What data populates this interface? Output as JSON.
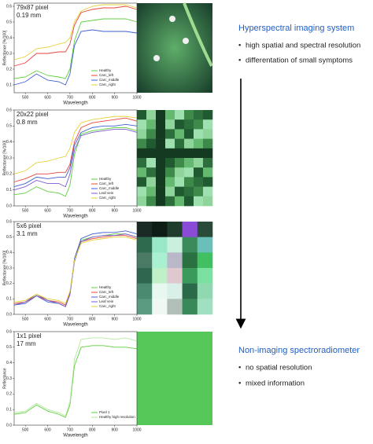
{
  "chart_data": [
    {
      "type": "line",
      "annotations": [
        "79x87 pixel",
        "0.19 mm"
      ],
      "xlabel": "Wavelength",
      "ylabel": "Reflectance [%/100]",
      "x": [
        450,
        500,
        550,
        600,
        650,
        680,
        700,
        720,
        750,
        800,
        850,
        900,
        950,
        1000
      ],
      "xlim": [
        450,
        1000
      ],
      "xticks": [
        500,
        600,
        700,
        800,
        900,
        1000
      ],
      "ylim": [
        0.05,
        0.62
      ],
      "yticks": [
        0.1,
        0.2,
        0.3,
        0.4,
        0.5,
        0.6
      ],
      "legend": "lower right",
      "series": [
        {
          "name": "Healthy",
          "color": "#5fd040",
          "values": [
            0.14,
            0.15,
            0.19,
            0.16,
            0.15,
            0.14,
            0.2,
            0.38,
            0.5,
            0.51,
            0.52,
            0.52,
            0.52,
            0.5
          ]
        },
        {
          "name": "Carc_left",
          "color": "#e8443a",
          "values": [
            0.22,
            0.24,
            0.3,
            0.3,
            0.31,
            0.31,
            0.36,
            0.48,
            0.56,
            0.58,
            0.59,
            0.59,
            0.6,
            0.58
          ]
        },
        {
          "name": "Carc_middle",
          "color": "#3f5fd0",
          "values": [
            0.1,
            0.12,
            0.17,
            0.13,
            0.12,
            0.1,
            0.17,
            0.35,
            0.44,
            0.45,
            0.44,
            0.44,
            0.44,
            0.43
          ]
        },
        {
          "name": "Carc_right",
          "color": "#e6d23a",
          "values": [
            0.26,
            0.28,
            0.33,
            0.34,
            0.36,
            0.37,
            0.4,
            0.5,
            0.57,
            0.6,
            0.61,
            0.61,
            0.61,
            0.59
          ]
        }
      ]
    },
    {
      "type": "line",
      "annotations": [
        "20x22 pixel",
        "0.8 mm"
      ],
      "xlabel": "Wavelength",
      "ylabel": "Reflectance [%/100]",
      "x": [
        450,
        500,
        550,
        600,
        650,
        680,
        700,
        720,
        750,
        800,
        850,
        900,
        950,
        1000
      ],
      "xlim": [
        450,
        1000
      ],
      "xticks": [
        500,
        600,
        700,
        800,
        900,
        1000
      ],
      "ylim": [
        0,
        0.6
      ],
      "yticks": [
        {
          "value": 0,
          "label": "0.0"
        },
        0.1,
        0.2,
        0.3,
        0.4,
        0.5,
        0.6
      ],
      "legend": "lower right",
      "series": [
        {
          "name": "Healthy",
          "color": "#5fd040",
          "values": [
            0.07,
            0.08,
            0.12,
            0.09,
            0.08,
            0.06,
            0.13,
            0.32,
            0.45,
            0.47,
            0.48,
            0.49,
            0.49,
            0.47
          ]
        },
        {
          "name": "Carc_left",
          "color": "#e8443a",
          "values": [
            0.15,
            0.17,
            0.2,
            0.2,
            0.21,
            0.21,
            0.26,
            0.4,
            0.49,
            0.52,
            0.53,
            0.54,
            0.55,
            0.53
          ]
        },
        {
          "name": "Carc_middle",
          "color": "#3f5fd0",
          "values": [
            0.12,
            0.14,
            0.18,
            0.17,
            0.18,
            0.18,
            0.24,
            0.38,
            0.46,
            0.49,
            0.5,
            0.5,
            0.51,
            0.5
          ]
        },
        {
          "name": "Leaf vein",
          "color": "#7a5ad0",
          "values": [
            0.1,
            0.12,
            0.16,
            0.14,
            0.14,
            0.12,
            0.2,
            0.35,
            0.44,
            0.46,
            0.47,
            0.48,
            0.48,
            0.46
          ]
        },
        {
          "name": "Carc_right",
          "color": "#e6d23a",
          "values": [
            0.2,
            0.22,
            0.27,
            0.28,
            0.3,
            0.31,
            0.36,
            0.46,
            0.52,
            0.54,
            0.55,
            0.56,
            0.56,
            0.55
          ]
        }
      ]
    },
    {
      "type": "line",
      "annotations": [
        "5x6 pixel",
        "3.1 mm"
      ],
      "xlabel": "Wavelength",
      "ylabel": "Reflectance [%/100]",
      "x": [
        450,
        500,
        550,
        600,
        650,
        680,
        700,
        720,
        750,
        800,
        850,
        900,
        950,
        1000
      ],
      "xlim": [
        450,
        1000
      ],
      "xticks": [
        500,
        600,
        700,
        800,
        900,
        1000
      ],
      "ylim": [
        0,
        0.6
      ],
      "yticks": [
        {
          "value": 0,
          "label": "0.0"
        },
        0.1,
        0.2,
        0.3,
        0.4,
        0.5,
        0.6
      ],
      "legend": "lower right",
      "series": [
        {
          "name": "Healthy",
          "color": "#5fd040",
          "values": [
            0.07,
            0.08,
            0.13,
            0.09,
            0.07,
            0.05,
            0.13,
            0.35,
            0.48,
            0.5,
            0.51,
            0.52,
            0.52,
            0.5
          ]
        },
        {
          "name": "Carc_left",
          "color": "#e8443a",
          "values": [
            0.07,
            0.08,
            0.12,
            0.09,
            0.08,
            0.06,
            0.14,
            0.35,
            0.47,
            0.49,
            0.5,
            0.51,
            0.51,
            0.49
          ]
        },
        {
          "name": "Carc_middle",
          "color": "#3f5fd0",
          "values": [
            0.06,
            0.07,
            0.12,
            0.08,
            0.07,
            0.05,
            0.13,
            0.36,
            0.49,
            0.52,
            0.53,
            0.53,
            0.54,
            0.52
          ]
        },
        {
          "name": "Leaf vein",
          "color": "#7a5ad0",
          "values": [
            0.06,
            0.08,
            0.13,
            0.09,
            0.07,
            0.05,
            0.13,
            0.34,
            0.47,
            0.5,
            0.51,
            0.51,
            0.52,
            0.5
          ]
        },
        {
          "name": "Carc_right",
          "color": "#e6d23a",
          "values": [
            0.08,
            0.09,
            0.13,
            0.1,
            0.09,
            0.07,
            0.15,
            0.35,
            0.46,
            0.48,
            0.49,
            0.5,
            0.5,
            0.48
          ]
        }
      ]
    },
    {
      "type": "line",
      "annotations": [
        "1x1 pixel",
        "17 mm"
      ],
      "xlabel": "Wavelength",
      "ylabel": "Reflectance",
      "x": [
        450,
        500,
        550,
        600,
        650,
        680,
        700,
        720,
        750,
        800,
        850,
        900,
        950,
        1000
      ],
      "xlim": [
        450,
        1000
      ],
      "xticks": [
        500,
        600,
        700,
        800,
        900,
        1000
      ],
      "ylim": [
        0,
        0.6
      ],
      "yticks": [
        {
          "value": 0,
          "label": "0.0"
        },
        0.1,
        0.2,
        0.3,
        0.4,
        0.5,
        0.6
      ],
      "legend": "lower right",
      "series": [
        {
          "name": "Pixel 1",
          "color": "#5fd040",
          "values": [
            0.07,
            0.08,
            0.13,
            0.09,
            0.07,
            0.05,
            0.13,
            0.38,
            0.5,
            0.51,
            0.51,
            0.5,
            0.5,
            0.49
          ]
        },
        {
          "name": "Healthy high resolution",
          "color": "#b6e8a0",
          "values": [
            0.08,
            0.09,
            0.14,
            0.1,
            0.08,
            0.06,
            0.15,
            0.42,
            0.55,
            0.56,
            0.56,
            0.55,
            0.56,
            0.54
          ]
        }
      ]
    }
  ],
  "side_text": {
    "top": {
      "heading": "Hyperspectral imaging system",
      "bullets": [
        "high spatial and spectral resolution",
        "differentation of small symptoms"
      ]
    },
    "bottom": {
      "heading": "Non-imaging spectroradiometer",
      "bullets": [
        "no spatial resolution",
        "mixed information"
      ]
    }
  }
}
